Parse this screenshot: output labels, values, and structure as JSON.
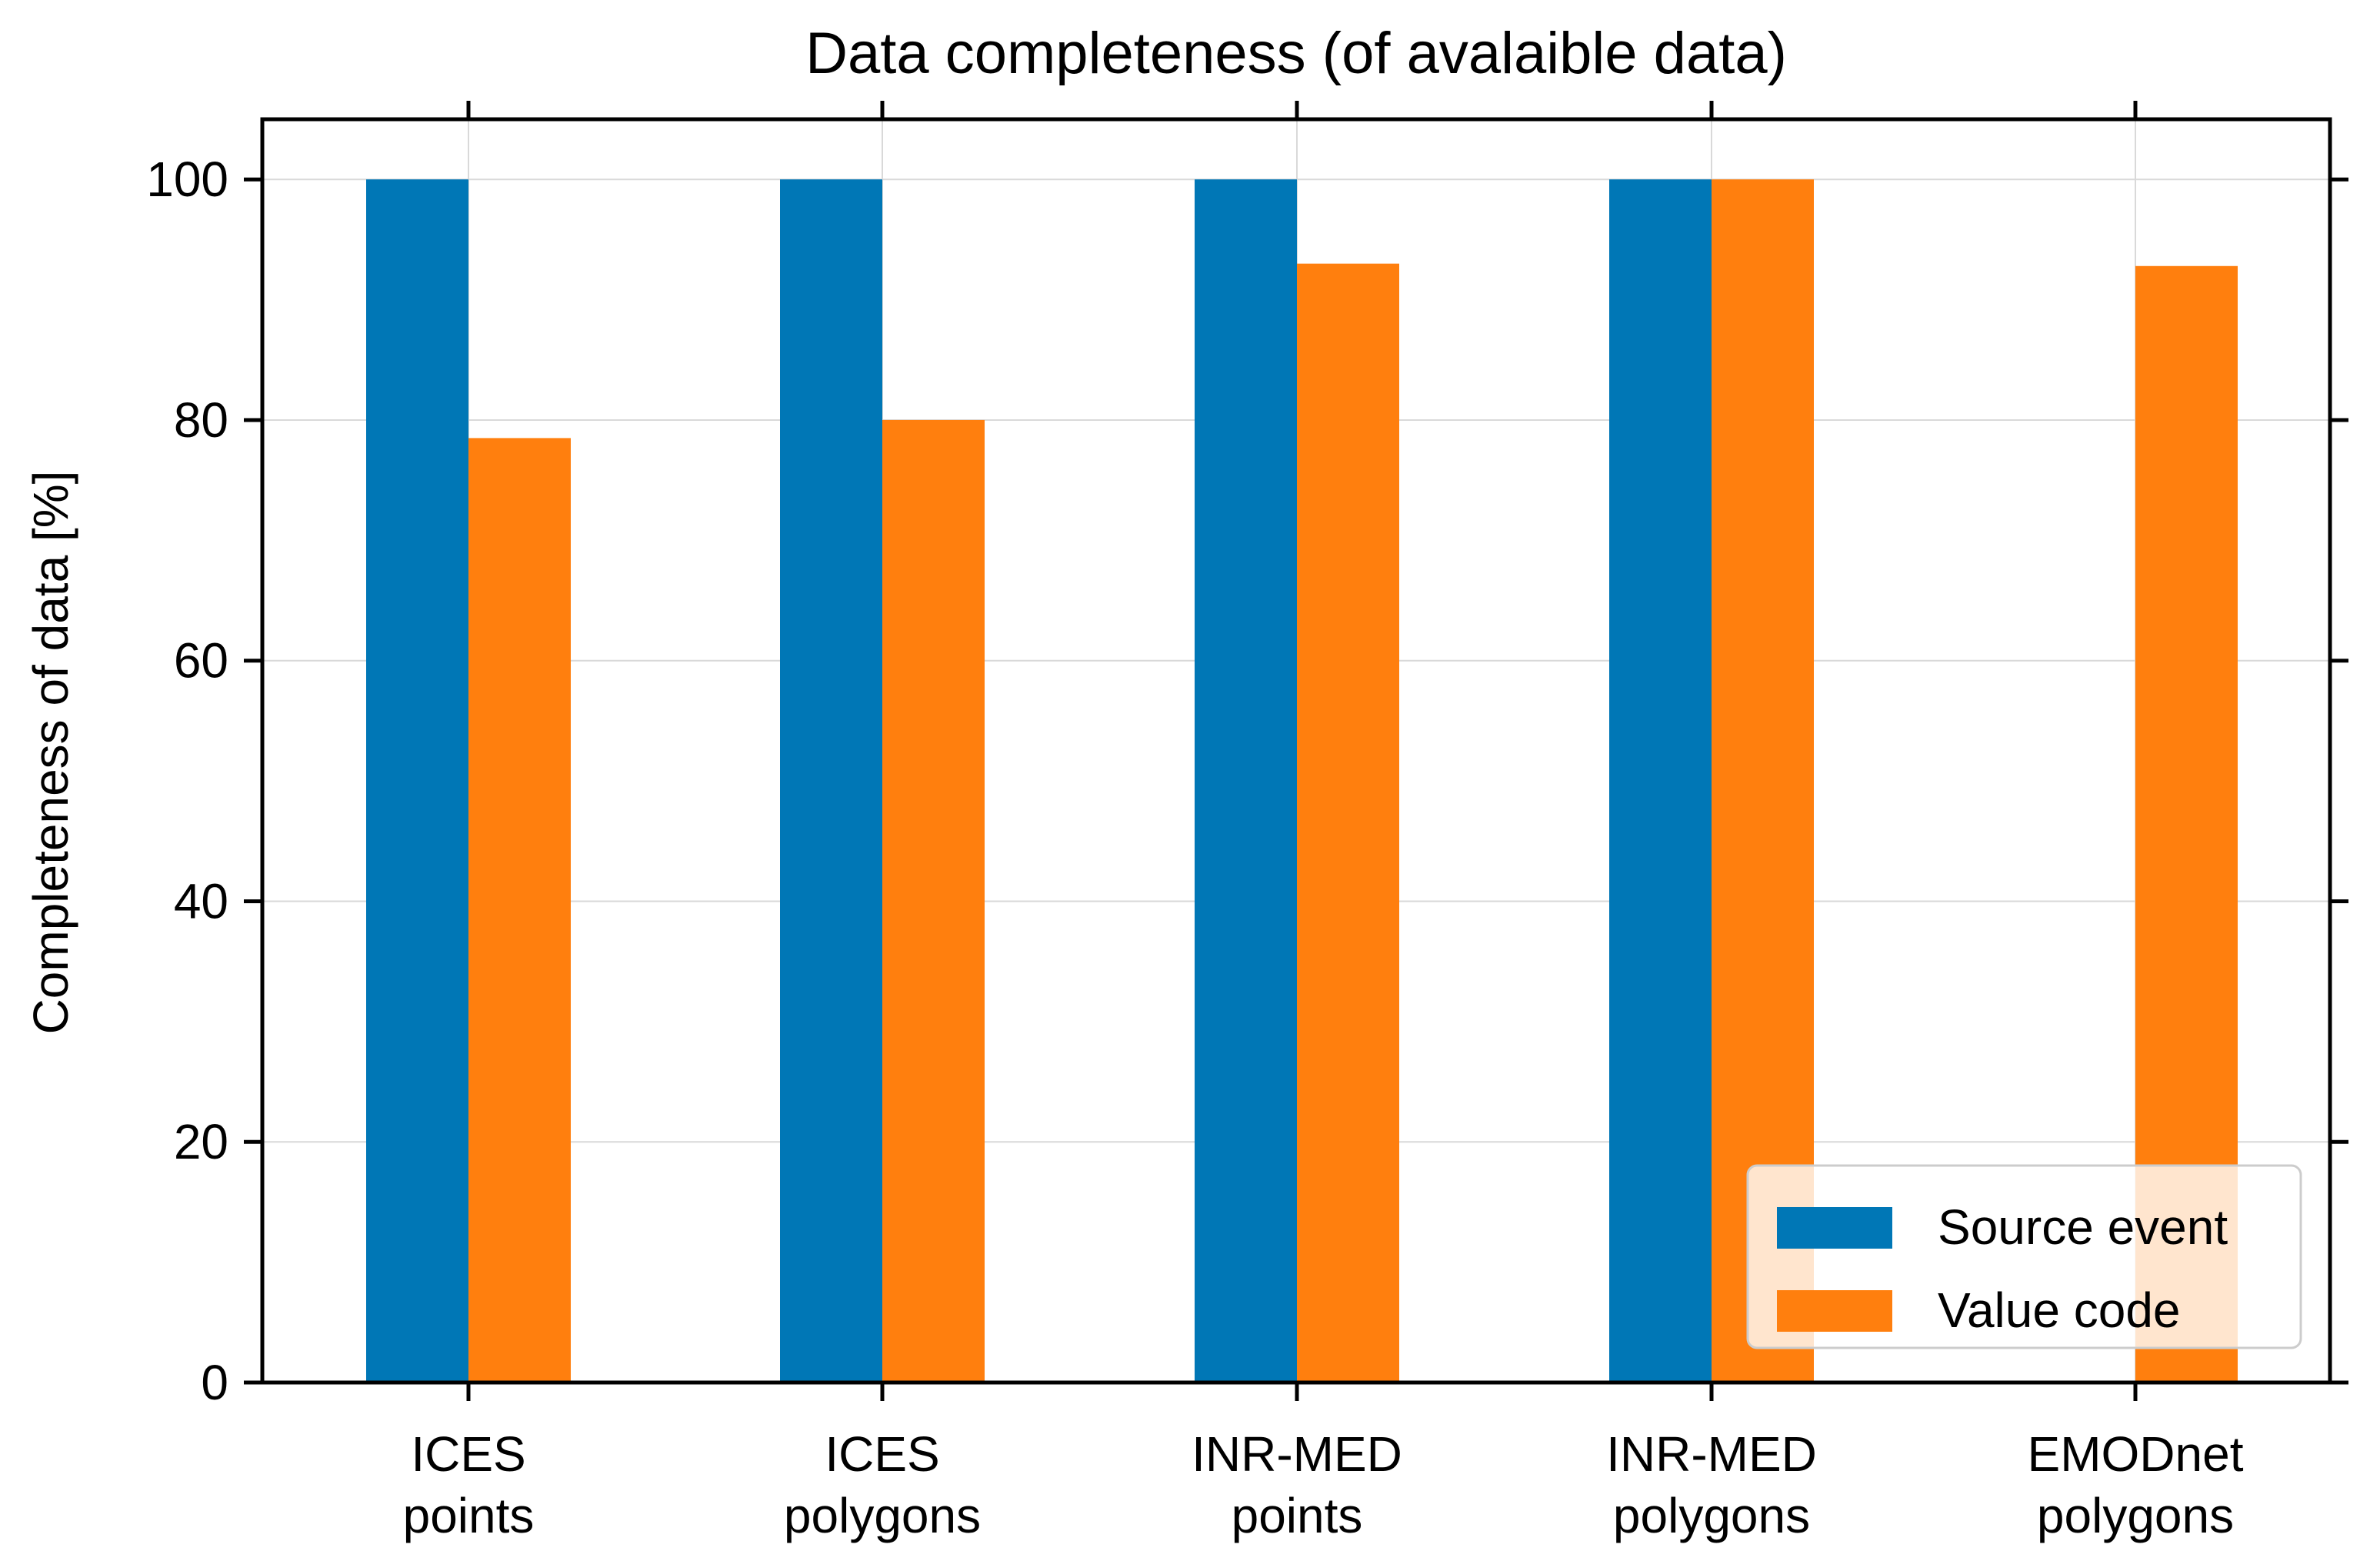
{
  "chart_data": {
    "type": "bar",
    "title": "Data completeness (of avalaible data)",
    "xlabel": "",
    "ylabel": "Completeness of data [%]",
    "ylim": [
      0,
      105
    ],
    "yticks": [
      0,
      20,
      40,
      60,
      80,
      100
    ],
    "grid": true,
    "legend_position": "bottom-right",
    "categories": [
      [
        "ICES",
        "points"
      ],
      [
        "ICES",
        "polygons"
      ],
      [
        "INR-MED",
        "points"
      ],
      [
        "INR-MED",
        "polygons"
      ],
      [
        "EMODnet",
        "polygons"
      ]
    ],
    "series": [
      {
        "name": "Source event",
        "color": "#0077b6",
        "values": [
          100,
          100,
          100,
          100,
          null
        ]
      },
      {
        "name": "Value code",
        "color": "#ff7f0e",
        "values": [
          78.5,
          80,
          93,
          100,
          92.8
        ]
      }
    ]
  }
}
